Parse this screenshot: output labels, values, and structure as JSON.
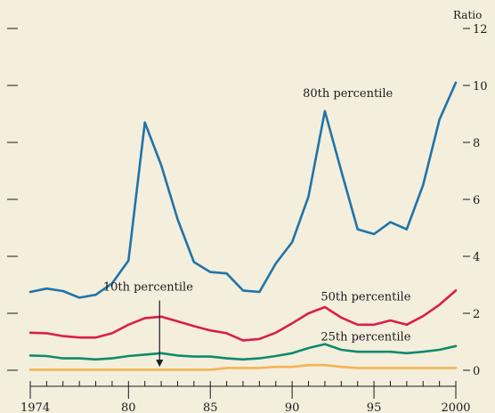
{
  "chart_data": {
    "type": "line",
    "title": "",
    "xlabel": "",
    "ylabel": "",
    "y_unit_label": "Ratio",
    "ylim": [
      0,
      12
    ],
    "y_ticks": [
      0,
      2,
      4,
      6,
      8,
      10,
      12
    ],
    "y_tick_labels": [
      "0",
      "2",
      "4",
      "6",
      "8",
      "10",
      "12"
    ],
    "xlim": [
      1974,
      2000
    ],
    "x_tick_positions": [
      1974,
      1980,
      1985,
      1990,
      1995,
      2000
    ],
    "x_tick_labels": [
      "1974",
      "80",
      "85",
      "90",
      "95",
      "2000"
    ],
    "x_minor_ticks": [
      1974,
      1975,
      1976,
      1977,
      1978,
      1979,
      1980,
      1981,
      1982,
      1983,
      1984,
      1985,
      1986,
      1987,
      1988,
      1989,
      1990,
      1991,
      1992,
      1993,
      1994,
      1995,
      1996,
      1997,
      1998,
      1999,
      2000
    ],
    "grid": false,
    "x": [
      1974,
      1975,
      1976,
      1977,
      1978,
      1979,
      1980,
      1981,
      1982,
      1983,
      1984,
      1985,
      1986,
      1987,
      1988,
      1989,
      1990,
      1991,
      1992,
      1993,
      1994,
      1995,
      1996,
      1997,
      1998,
      1999,
      2000
    ],
    "series": [
      {
        "name": "80th percentile",
        "color": "#1f74a8",
        "values": [
          2.75,
          2.87,
          2.78,
          2.55,
          2.65,
          3.05,
          3.85,
          8.7,
          7.2,
          5.3,
          3.8,
          3.45,
          3.4,
          2.8,
          2.75,
          3.75,
          4.5,
          6.1,
          9.1,
          7.0,
          4.95,
          4.78,
          5.2,
          4.95,
          6.5,
          8.8,
          10.1
        ],
        "label_at": [
          1993.4,
          9.6
        ]
      },
      {
        "name": "50th percentile",
        "color": "#d81f4a",
        "values": [
          1.32,
          1.3,
          1.2,
          1.15,
          1.15,
          1.3,
          1.6,
          1.83,
          1.88,
          1.72,
          1.55,
          1.4,
          1.3,
          1.05,
          1.1,
          1.32,
          1.65,
          2.0,
          2.22,
          1.85,
          1.6,
          1.6,
          1.75,
          1.6,
          1.9,
          2.3,
          2.8
        ],
        "label_at": [
          1994.5,
          2.45
        ]
      },
      {
        "name": "25th percentile",
        "color": "#0f8a6a",
        "values": [
          0.52,
          0.5,
          0.42,
          0.42,
          0.38,
          0.42,
          0.5,
          0.55,
          0.6,
          0.52,
          0.48,
          0.48,
          0.42,
          0.38,
          0.42,
          0.5,
          0.6,
          0.78,
          0.92,
          0.72,
          0.65,
          0.65,
          0.65,
          0.6,
          0.65,
          0.72,
          0.85
        ],
        "label_at": [
          1994.5,
          1.05
        ]
      },
      {
        "name": "10th percentile",
        "color": "#f3b451",
        "values": [
          0.02,
          0.02,
          0.02,
          0.02,
          0.02,
          0.02,
          0.02,
          0.02,
          0.02,
          0.02,
          0.02,
          0.02,
          0.08,
          0.08,
          0.08,
          0.12,
          0.12,
          0.18,
          0.18,
          0.12,
          0.08,
          0.08,
          0.08,
          0.08,
          0.08,
          0.08,
          0.08
        ],
        "label_at": [
          1981.2,
          2.8
        ],
        "arrow": {
          "from": [
            1981.9,
            2.45
          ],
          "to": [
            1981.9,
            0.12
          ]
        }
      }
    ]
  }
}
